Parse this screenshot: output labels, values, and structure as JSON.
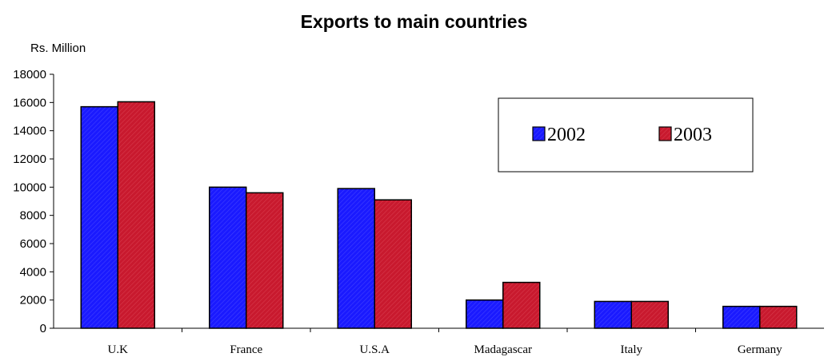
{
  "chart_data": {
    "type": "bar",
    "title": "Exports to main countries",
    "ylabel": "Rs. Million",
    "xlabel": "",
    "categories": [
      "U.K",
      "France",
      "U.S.A",
      "Madagascar",
      "Italy",
      "Germany"
    ],
    "series": [
      {
        "name": "2002",
        "values": [
          15700,
          10000,
          9900,
          2000,
          1900,
          1550
        ],
        "color": "#1a1aff"
      },
      {
        "name": "2003",
        "values": [
          16050,
          9600,
          9100,
          3250,
          1900,
          1550
        ],
        "color": "#c8192e"
      }
    ],
    "ylim": [
      0,
      18000
    ],
    "yticks": [
      0,
      2000,
      4000,
      6000,
      8000,
      10000,
      12000,
      14000,
      16000,
      18000
    ],
    "grid": false,
    "legend": "top-right"
  }
}
